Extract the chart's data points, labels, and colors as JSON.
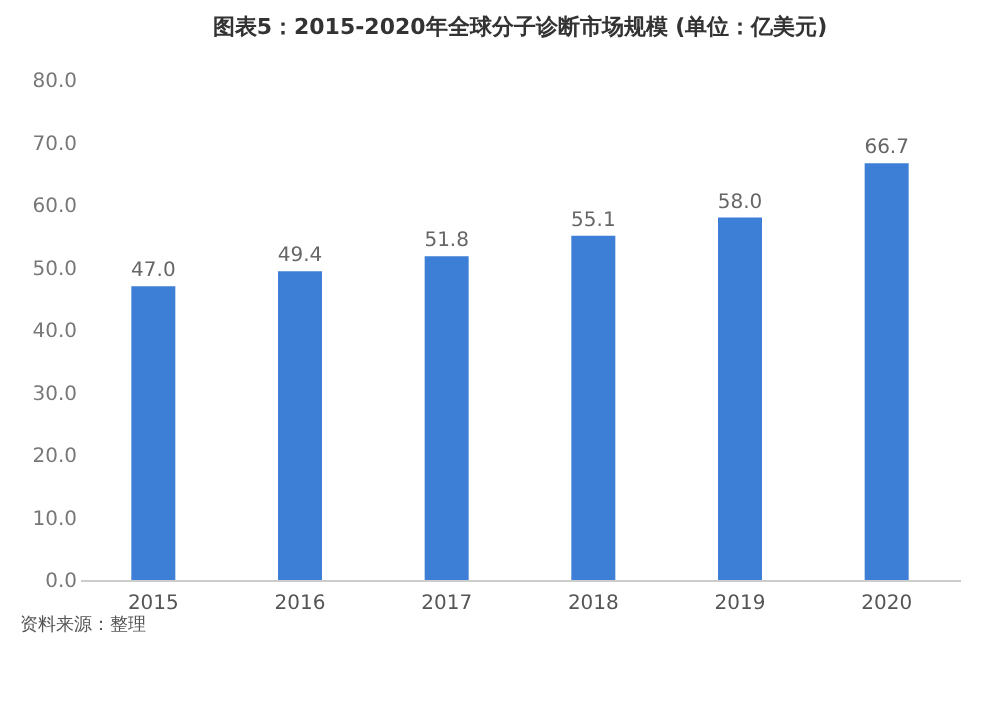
{
  "chart_data": {
    "type": "bar",
    "title": "图表5：2015-2020年全球分子诊断市场规模 (单位：亿美元)",
    "categories": [
      "2015",
      "2016",
      "2017",
      "2018",
      "2019",
      "2020"
    ],
    "values": [
      47.0,
      49.4,
      51.8,
      55.1,
      58.0,
      66.7
    ],
    "color": "#3d7fd6",
    "ylim": [
      0,
      80
    ],
    "yticks": [
      {
        "value": 0,
        "label": "0.0"
      },
      {
        "value": 10,
        "label": "10.0"
      },
      {
        "value": 20,
        "label": "20.0"
      },
      {
        "value": 30,
        "label": "30.0"
      },
      {
        "value": 40,
        "label": "40.0"
      },
      {
        "value": 50,
        "label": "50.0"
      },
      {
        "value": 60,
        "label": "60.0"
      },
      {
        "value": 70,
        "label": "70.0"
      },
      {
        "value": 80,
        "label": "80.0"
      }
    ],
    "value_labels": [
      "47.0",
      "49.4",
      "51.8",
      "55.1",
      "58.0",
      "66.7"
    ],
    "grid": false,
    "annotations": [
      "资料来源：整理"
    ]
  }
}
